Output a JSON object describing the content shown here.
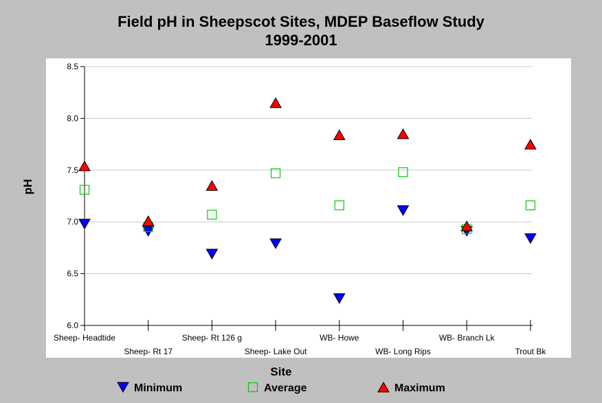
{
  "chart_data": {
    "type": "scatter",
    "title": [
      "Field pH in Sheepscot Sites, MDEP Baseflow Study",
      "1999-2001"
    ],
    "xlabel": "Site",
    "ylabel": "pH",
    "ylim": [
      6.0,
      8.5
    ],
    "yticks": [
      "6.0",
      "6.5",
      "7.0",
      "7.5",
      "8.0",
      "8.5"
    ],
    "grid": true,
    "legend_position": "bottom",
    "categories": [
      "Sheep- Headtide",
      "Sheep- Rt 17",
      "Sheep- Rt 126 g",
      "Sheep- Lake Out",
      "WB- Howe",
      "WB- Long Rips",
      "WB- Branch Lk",
      "Trout Bk"
    ],
    "series": [
      {
        "name": "Minimum",
        "marker": "triangle-down",
        "color": "#0000ff",
        "values": [
          6.98,
          6.91,
          6.69,
          6.79,
          6.26,
          7.11,
          6.91,
          6.84
        ]
      },
      {
        "name": "Average",
        "marker": "square-open",
        "color": "#00cc00",
        "values": [
          7.31,
          6.95,
          7.07,
          7.47,
          7.16,
          7.48,
          6.93,
          7.16
        ]
      },
      {
        "name": "Maximum",
        "marker": "triangle-up",
        "color": "#ff0000",
        "values": [
          7.54,
          7.01,
          7.35,
          8.15,
          7.84,
          7.85,
          6.96,
          7.75
        ]
      }
    ]
  }
}
